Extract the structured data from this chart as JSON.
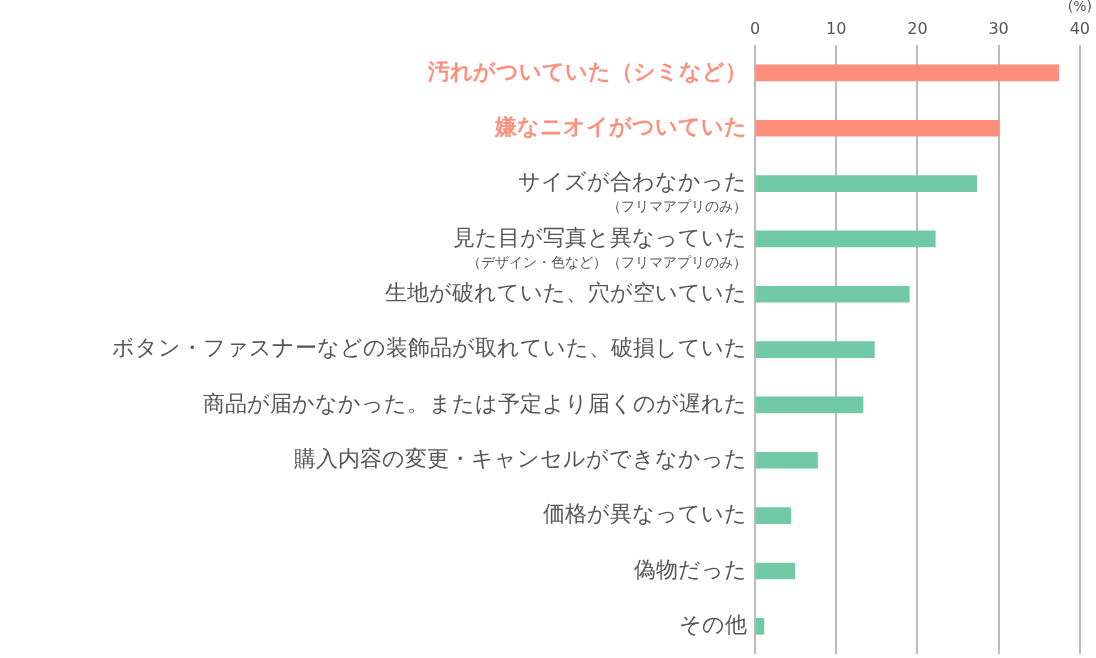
{
  "chart_data": {
    "type": "bar",
    "orientation": "horizontal",
    "xlabel": "(%)",
    "categories": [
      "汚れがついていた（シミなど）",
      "嫌なニオイがついていた",
      "サイズが合わなかった（フリマアプリのみ）",
      "見た目が写真と異なっていた（デザイン・色など）（フリマアプリのみ）",
      "生地が破れていた、穴が空いていた",
      "ボタン・ファスナーなどの装飾品が取れていた、破損していた",
      "商品が届かなかった。または予定より届くのが遅れた",
      "購入内容の変更・キャンセルができなかった",
      "価格が異なっていた",
      "偽物だった",
      "その他"
    ],
    "values": [
      37.4,
      30.1,
      27.3,
      22.2,
      19.0,
      14.7,
      13.3,
      7.7,
      4.4,
      4.9,
      1.1
    ],
    "colors": [
      "#ff8f7c",
      "#ff8f7c",
      "#72c9a6",
      "#72c9a6",
      "#72c9a6",
      "#72c9a6",
      "#72c9a6",
      "#72c9a6",
      "#72c9a6",
      "#72c9a6",
      "#72c9a6"
    ],
    "xlim": [
      0,
      40
    ],
    "xticks": [
      0,
      10,
      20,
      30,
      40
    ],
    "grid": "x",
    "legend": false
  }
}
